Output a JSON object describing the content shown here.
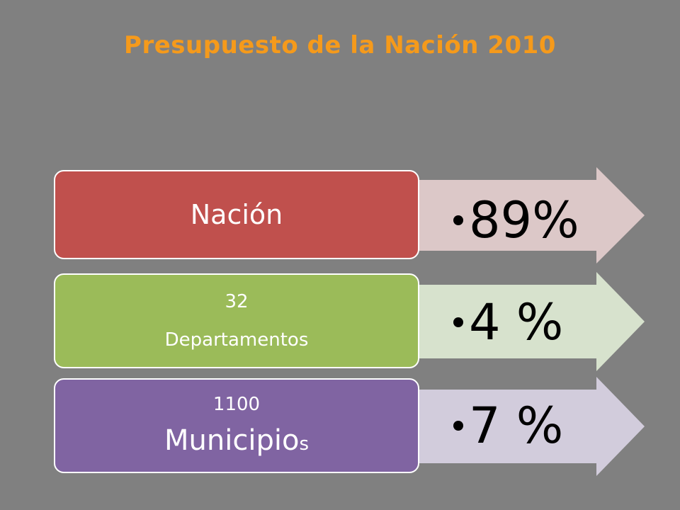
{
  "title": "Presupuesto de la Nación 2010",
  "rows": [
    {
      "label_lines": [
        "Nación"
      ],
      "value": "89%",
      "box_color": "#c0504d",
      "arrow_color": "#dcc8c8"
    },
    {
      "label_lines": [
        "32",
        "Departamentos"
      ],
      "value": "4 %",
      "box_color": "#9bbb59",
      "arrow_color": "#d7e2cd"
    },
    {
      "label_lines": [
        "1100",
        "Municipio",
        "s"
      ],
      "value": "7 %",
      "box_color": "#8064a2",
      "arrow_color": "#d2ccdc"
    }
  ]
}
